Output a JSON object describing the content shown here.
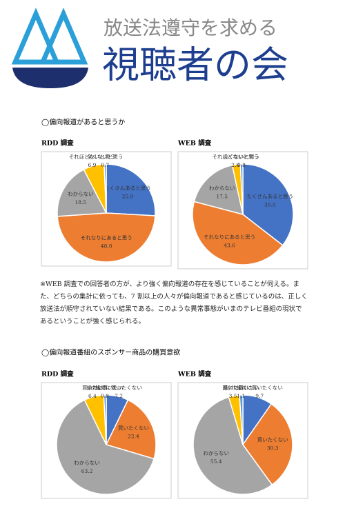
{
  "header": {
    "title_line1": "放送法遵守を求める",
    "title_line2": "視聴者の会"
  },
  "section1_heading": "◯偏向報道があると思うか",
  "paragraph": "※WEB 調査での回答者の方が、より強く偏向報道の存在を感じていることが伺える。また、どちらの集計に依っても、7 割以上の人々が偏向報道であると感じているのは、正しく放送法が順守されていない結果である。このような異常事態がいまのテレビ番組の現状であるということが強く感じられる。",
  "section2_heading": "◯偏向報道番組のスポンサー商品の購買意欲",
  "chart_data": [
    {
      "type": "pie",
      "title": "RDD 調査",
      "categories": [
        "たくさんあると思う",
        "それなりにあると思う",
        "わからない",
        "それほどないと思う",
        "全くないと思う"
      ],
      "values": [
        25.9,
        48.0,
        18.5,
        6.9,
        0.7
      ],
      "value_labels": [
        "25.9",
        "48.0",
        "18.5",
        "6.9",
        "0.7"
      ],
      "colors": [
        "#4472c4",
        "#ed7d31",
        "#a5a5a5",
        "#ffc000",
        "#5b9bd5"
      ]
    },
    {
      "type": "pie",
      "title": "WEB 調査",
      "categories": [
        "たくさんあると思う",
        "それなりにあると思う",
        "わからない",
        "それほどないと思う",
        "全くないと思う"
      ],
      "values": [
        35.5,
        43.6,
        17.5,
        2.6,
        0.8
      ],
      "value_labels": [
        "35.5",
        "43.6",
        "17.5",
        "2.6",
        "0.8"
      ],
      "colors": [
        "#4472c4",
        "#ed7d31",
        "#a5a5a5",
        "#ffc000",
        "#5b9bd5"
      ]
    },
    {
      "type": "pie",
      "title": "RDD 調査",
      "categories": [
        "絶対に買いたくない",
        "買いたくない",
        "わからない",
        "買いたい",
        "絶対に買いたい"
      ],
      "values": [
        7.2,
        22.4,
        63.2,
        6.4,
        0.8
      ],
      "value_labels": [
        "7.2",
        "22.4",
        "63.2",
        "6.4",
        "0.8"
      ],
      "colors": [
        "#4472c4",
        "#ed7d31",
        "#a5a5a5",
        "#ffc000",
        "#5b9bd5"
      ]
    },
    {
      "type": "pie",
      "title": "WEB 調査",
      "categories": [
        "絶対に買いたくない",
        "買いたくない",
        "わからない",
        "買いたい",
        "絶対に買いたい"
      ],
      "values": [
        9.7,
        30.3,
        55.4,
        3.5,
        1.1
      ],
      "value_labels": [
        "9.7",
        "30.3",
        "55.4",
        "3.5",
        "1.1"
      ],
      "colors": [
        "#4472c4",
        "#ed7d31",
        "#a5a5a5",
        "#ffc000",
        "#5b9bd5"
      ]
    }
  ]
}
